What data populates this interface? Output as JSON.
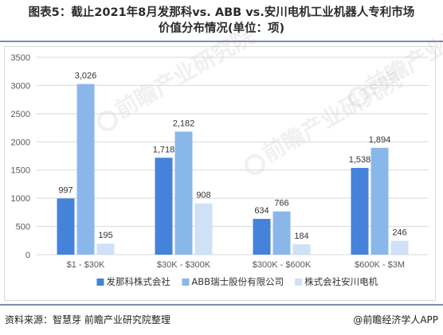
{
  "title": {
    "line1": "图表5：截止2021年8月发那科vs. ABB vs.安川电机工业机器人专利市场",
    "line2": "价值分布情况(单位：项)"
  },
  "footer": {
    "source": "资料来源：智慧芽 前瞻产业研究院整理",
    "credit": "@前瞻经济学人APP"
  },
  "watermark": {
    "text": "前瞻产业研究院",
    "icon": "qianzhan-logo-icon"
  },
  "colors": {
    "series1": "#4483d9",
    "series2": "#8ab7ea",
    "series3": "#cfe1f6",
    "grid": "#d9d9d9",
    "axis_text": "#595959"
  },
  "chart_data": {
    "type": "bar",
    "categories": [
      "$1 - $30K",
      "$30K - $300K",
      "$300K - $600K",
      "$600K - $3M"
    ],
    "series": [
      {
        "name": "发那科株式会社",
        "values": [
          997,
          1718,
          634,
          1538
        ]
      },
      {
        "name": "ABB瑞士股份有限公司",
        "values": [
          3026,
          2182,
          766,
          1894
        ]
      },
      {
        "name": "株式会社安川电机",
        "values": [
          195,
          908,
          184,
          246
        ]
      }
    ],
    "ylim": [
      0,
      3500
    ],
    "yticks": [
      0,
      500,
      1000,
      1500,
      2000,
      2500,
      3000,
      3500
    ],
    "grid": true,
    "legend": "bottom",
    "xlabel": "",
    "ylabel": ""
  }
}
